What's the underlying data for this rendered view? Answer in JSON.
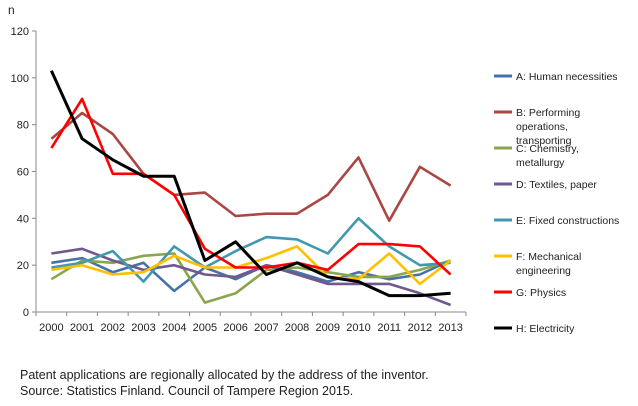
{
  "chart_data": {
    "type": "line",
    "title": "",
    "xlabel": "",
    "ylabel": "n",
    "ylim": [
      0,
      120
    ],
    "yticks": [
      0,
      20,
      40,
      60,
      80,
      100,
      120
    ],
    "grid": false,
    "legend_position": "right",
    "categories": [
      "2000",
      "2001",
      "2002",
      "2003",
      "2004",
      "2005",
      "2006",
      "2007",
      "2008",
      "2009",
      "2010",
      "2011",
      "2012",
      "2013"
    ],
    "series": [
      {
        "name": "A: Human necessities",
        "color": "#4572a7",
        "values": [
          21,
          23,
          17,
          21,
          9,
          19,
          14,
          20,
          17,
          13,
          17,
          14,
          16,
          22
        ]
      },
      {
        "name": "B: Performing operations, transporting",
        "color": "#aa4643",
        "values": [
          74,
          85,
          76,
          59,
          50,
          51,
          41,
          42,
          42,
          50,
          66,
          39,
          62,
          54
        ]
      },
      {
        "name": "C: Chemistry, metallurgy",
        "color": "#89a54e",
        "values": [
          14,
          22,
          21,
          24,
          25,
          4,
          8,
          18,
          19,
          17,
          15,
          15,
          18,
          22
        ]
      },
      {
        "name": "D: Textiles, paper",
        "color": "#71588f",
        "values": [
          25,
          27,
          22,
          18,
          20,
          16,
          15,
          20,
          16,
          12,
          12,
          12,
          8,
          3
        ]
      },
      {
        "name": "E: Fixed constructions",
        "color": "#4198af",
        "values": [
          19,
          21,
          26,
          13,
          28,
          19,
          26,
          32,
          31,
          25,
          40,
          28,
          20,
          21
        ]
      },
      {
        "name": "F: Mechanical engineering",
        "color": "#ffc000",
        "values": [
          18,
          20,
          16,
          17,
          24,
          19,
          19,
          23,
          28,
          15,
          14,
          25,
          12,
          22
        ]
      },
      {
        "name": "G: Physics",
        "color": "#ff0000",
        "values": [
          70,
          91,
          59,
          59,
          50,
          27,
          19,
          19,
          21,
          18,
          29,
          29,
          28,
          16
        ]
      },
      {
        "name": "H: Electricity",
        "color": "#000000",
        "values": [
          103,
          74,
          65,
          58,
          58,
          22,
          30,
          16,
          21,
          15,
          13,
          7,
          7,
          8
        ]
      }
    ],
    "note_lines": [
      "Patent applications are regionally allocated by the address of the inventor.",
      "Source: Statistics Finland. Council of Tampere Region 2015."
    ]
  }
}
